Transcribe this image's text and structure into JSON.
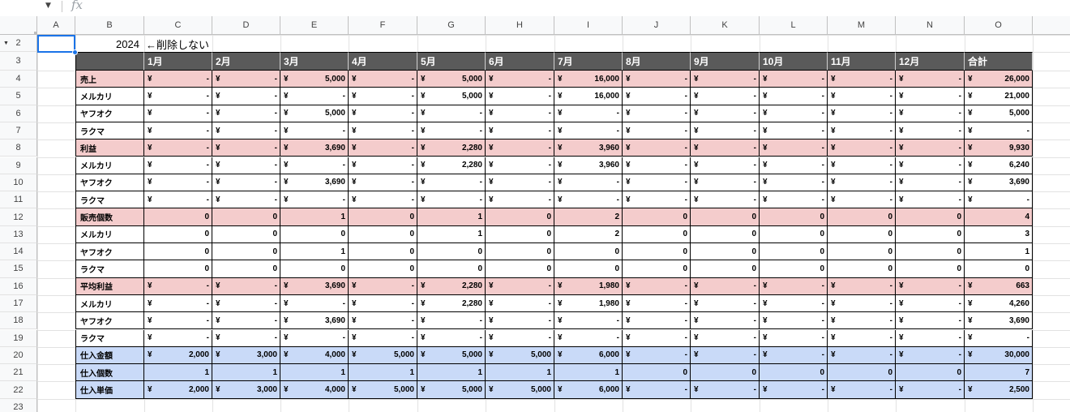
{
  "formula_bar": {
    "dropdown_icon": "caret-down-icon",
    "fx_icon": "fx-icon",
    "fx_label": "fx"
  },
  "columns": [
    "A",
    "B",
    "C",
    "D",
    "E",
    "F",
    "G",
    "H",
    "I",
    "J",
    "K",
    "L",
    "M",
    "N",
    "O"
  ],
  "row_numbers": [
    "2",
    "3",
    "4",
    "5",
    "6",
    "7",
    "8",
    "9",
    "10",
    "11",
    "12",
    "13",
    "14",
    "15",
    "16",
    "17",
    "18",
    "19",
    "20",
    "21",
    "22",
    "23"
  ],
  "year": "2024",
  "note": "←削除しない",
  "month_headers": [
    "1月",
    "2月",
    "3月",
    "4月",
    "5月",
    "6月",
    "7月",
    "8月",
    "9月",
    "10月",
    "11月",
    "12月",
    "合計"
  ],
  "currency_symbol": "¥",
  "colors": {
    "header_fill": "#5a5a5a",
    "pink_fill": "#f4cccc",
    "blue_fill": "#c9daf8",
    "selection": "#1a73e8"
  },
  "rows": [
    {
      "label": "売上",
      "style": "pink",
      "yen": true,
      "values": [
        "-",
        "-",
        "5,000",
        "-",
        "5,000",
        "-",
        "16,000",
        "-",
        "-",
        "-",
        "-",
        "-",
        "26,000"
      ]
    },
    {
      "label": "メルカリ",
      "style": "white",
      "yen": true,
      "values": [
        "-",
        "-",
        "-",
        "-",
        "5,000",
        "-",
        "16,000",
        "-",
        "-",
        "-",
        "-",
        "-",
        "21,000"
      ]
    },
    {
      "label": "ヤフオク",
      "style": "white",
      "yen": true,
      "values": [
        "-",
        "-",
        "5,000",
        "-",
        "-",
        "-",
        "-",
        "-",
        "-",
        "-",
        "-",
        "-",
        "5,000"
      ]
    },
    {
      "label": "ラクマ",
      "style": "white",
      "yen": true,
      "values": [
        "-",
        "-",
        "-",
        "-",
        "-",
        "-",
        "-",
        "-",
        "-",
        "-",
        "-",
        "-",
        "-"
      ]
    },
    {
      "label": "利益",
      "style": "pink",
      "yen": true,
      "values": [
        "-",
        "-",
        "3,690",
        "-",
        "2,280",
        "-",
        "3,960",
        "-",
        "-",
        "-",
        "-",
        "-",
        "9,930"
      ]
    },
    {
      "label": "メルカリ",
      "style": "white",
      "yen": true,
      "values": [
        "-",
        "-",
        "-",
        "-",
        "2,280",
        "-",
        "3,960",
        "-",
        "-",
        "-",
        "-",
        "-",
        "6,240"
      ]
    },
    {
      "label": "ヤフオク",
      "style": "white",
      "yen": true,
      "values": [
        "-",
        "-",
        "3,690",
        "-",
        "-",
        "-",
        "-",
        "-",
        "-",
        "-",
        "-",
        "-",
        "3,690"
      ]
    },
    {
      "label": "ラクマ",
      "style": "white",
      "yen": true,
      "values": [
        "-",
        "-",
        "-",
        "-",
        "-",
        "-",
        "-",
        "-",
        "-",
        "-",
        "-",
        "-",
        "-"
      ]
    },
    {
      "label": "販売個数",
      "style": "pink",
      "yen": false,
      "values": [
        "0",
        "0",
        "1",
        "0",
        "1",
        "0",
        "2",
        "0",
        "0",
        "0",
        "0",
        "0",
        "4"
      ]
    },
    {
      "label": "メルカリ",
      "style": "white",
      "yen": false,
      "values": [
        "0",
        "0",
        "0",
        "0",
        "1",
        "0",
        "2",
        "0",
        "0",
        "0",
        "0",
        "0",
        "3"
      ]
    },
    {
      "label": "ヤフオク",
      "style": "white",
      "yen": false,
      "values": [
        "0",
        "0",
        "1",
        "0",
        "0",
        "0",
        "0",
        "0",
        "0",
        "0",
        "0",
        "0",
        "1"
      ]
    },
    {
      "label": "ラクマ",
      "style": "white",
      "yen": false,
      "values": [
        "0",
        "0",
        "0",
        "0",
        "0",
        "0",
        "0",
        "0",
        "0",
        "0",
        "0",
        "0",
        "0"
      ]
    },
    {
      "label": "平均利益",
      "style": "pink",
      "yen": true,
      "values": [
        "-",
        "-",
        "3,690",
        "-",
        "2,280",
        "-",
        "1,980",
        "-",
        "-",
        "-",
        "-",
        "-",
        "663"
      ]
    },
    {
      "label": "メルカリ",
      "style": "white",
      "yen": true,
      "values": [
        "-",
        "-",
        "-",
        "-",
        "2,280",
        "-",
        "1,980",
        "-",
        "-",
        "-",
        "-",
        "-",
        "4,260"
      ]
    },
    {
      "label": "ヤフオク",
      "style": "white",
      "yen": true,
      "values": [
        "-",
        "-",
        "3,690",
        "-",
        "-",
        "-",
        "-",
        "-",
        "-",
        "-",
        "-",
        "-",
        "3,690"
      ]
    },
    {
      "label": "ラクマ",
      "style": "white",
      "yen": true,
      "values": [
        "-",
        "-",
        "-",
        "-",
        "-",
        "-",
        "-",
        "-",
        "-",
        "-",
        "-",
        "-",
        "-"
      ]
    },
    {
      "label": "仕入金額",
      "style": "blue",
      "yen": true,
      "values": [
        "2,000",
        "3,000",
        "4,000",
        "5,000",
        "5,000",
        "5,000",
        "6,000",
        "-",
        "-",
        "-",
        "-",
        "-",
        "30,000"
      ]
    },
    {
      "label": "仕入個数",
      "style": "blue",
      "yen": false,
      "values": [
        "1",
        "1",
        "1",
        "1",
        "1",
        "1",
        "1",
        "0",
        "0",
        "0",
        "0",
        "0",
        "7"
      ]
    },
    {
      "label": "仕入単価",
      "style": "blue",
      "yen": true,
      "values": [
        "2,000",
        "3,000",
        "4,000",
        "5,000",
        "5,000",
        "5,000",
        "6,000",
        "-",
        "-",
        "-",
        "-",
        "-",
        "2,500"
      ]
    }
  ]
}
